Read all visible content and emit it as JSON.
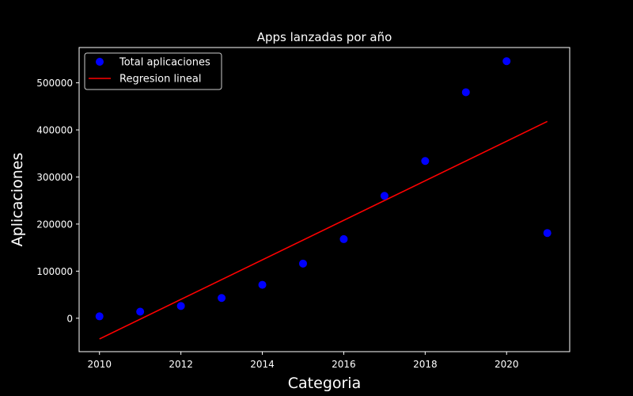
{
  "colors": {
    "background": "#000000",
    "axes": "#ffffff",
    "text": "#ffffff",
    "scatter": "#0000ff",
    "regression": "#ff0000"
  },
  "chart_data": {
    "type": "scatter",
    "title": "Apps lanzadas por año",
    "xlabel": "Categoria",
    "ylabel": "Aplicaciones",
    "xlim": [
      2009.5,
      2021.55
    ],
    "ylim": [
      -71000,
      575000
    ],
    "x_ticks": [
      2010,
      2012,
      2014,
      2016,
      2018,
      2020
    ],
    "y_ticks": [
      0,
      100000,
      200000,
      300000,
      400000,
      500000
    ],
    "grid": false,
    "legend": {
      "placement": "top-left",
      "entries": [
        {
          "label": "Total aplicaciones",
          "marker": "circle",
          "color": "#0000ff"
        },
        {
          "label": "Regresion lineal",
          "marker": "line",
          "color": "#ff0000"
        }
      ]
    },
    "series": [
      {
        "name": "Total aplicaciones",
        "kind": "scatter",
        "color": "#0000ff",
        "x": [
          2010,
          2011,
          2012,
          2013,
          2014,
          2015,
          2016,
          2017,
          2018,
          2019,
          2020,
          2021
        ],
        "y": [
          4000,
          14000,
          26000,
          43000,
          71000,
          116000,
          168000,
          260000,
          334000,
          480000,
          546000,
          181000
        ]
      },
      {
        "name": "Regresion lineal",
        "kind": "line",
        "color": "#ff0000",
        "x": [
          2010,
          2021
        ],
        "y": [
          -44000,
          418000
        ]
      }
    ]
  }
}
